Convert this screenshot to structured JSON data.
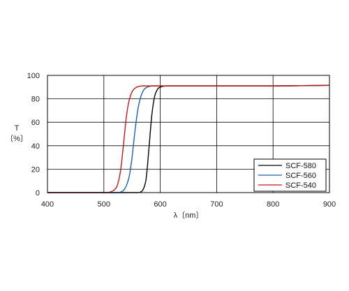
{
  "chart_data": {
    "type": "line",
    "title": "",
    "xlabel": "λ〔nm〕",
    "ylabel": "T",
    "ylabel_unit": "〔%〕",
    "xlim": [
      400,
      900
    ],
    "ylim": [
      0,
      100
    ],
    "xticks": [
      400,
      500,
      600,
      700,
      800,
      900
    ],
    "yticks": [
      0,
      20,
      40,
      60,
      80,
      100
    ],
    "grid": true,
    "legend_position": "bottom-right",
    "x": [
      400,
      500,
      510,
      520,
      525,
      530,
      535,
      540,
      545,
      550,
      555,
      560,
      565,
      570,
      575,
      580,
      585,
      590,
      595,
      600,
      610,
      620,
      640,
      660,
      700,
      800,
      900
    ],
    "series": [
      {
        "name": "SCF-580",
        "color": "#000000",
        "values": [
          0,
          0,
          0,
          0,
          0,
          0,
          0,
          0,
          0,
          0,
          0,
          0,
          0.5,
          3,
          12,
          38,
          66,
          82,
          88,
          90,
          91,
          91,
          91,
          91,
          91,
          91,
          91.5
        ]
      },
      {
        "name": "SCF-560",
        "color": "#1f5fa8",
        "values": [
          0,
          0,
          0,
          0,
          0,
          0.5,
          2,
          6,
          14,
          30,
          52,
          70,
          81,
          87,
          89.5,
          90.5,
          91,
          91,
          91,
          91,
          91,
          91,
          91,
          91,
          91,
          91,
          91.5
        ]
      },
      {
        "name": "SCF-540",
        "color": "#c0181c",
        "values": [
          0,
          0,
          0.3,
          3,
          8,
          20,
          42,
          65,
          79,
          86,
          89,
          90.3,
          90.8,
          91,
          91,
          91,
          91,
          91,
          91,
          91,
          91,
          91,
          91,
          91,
          91,
          91,
          91.5
        ]
      }
    ]
  }
}
